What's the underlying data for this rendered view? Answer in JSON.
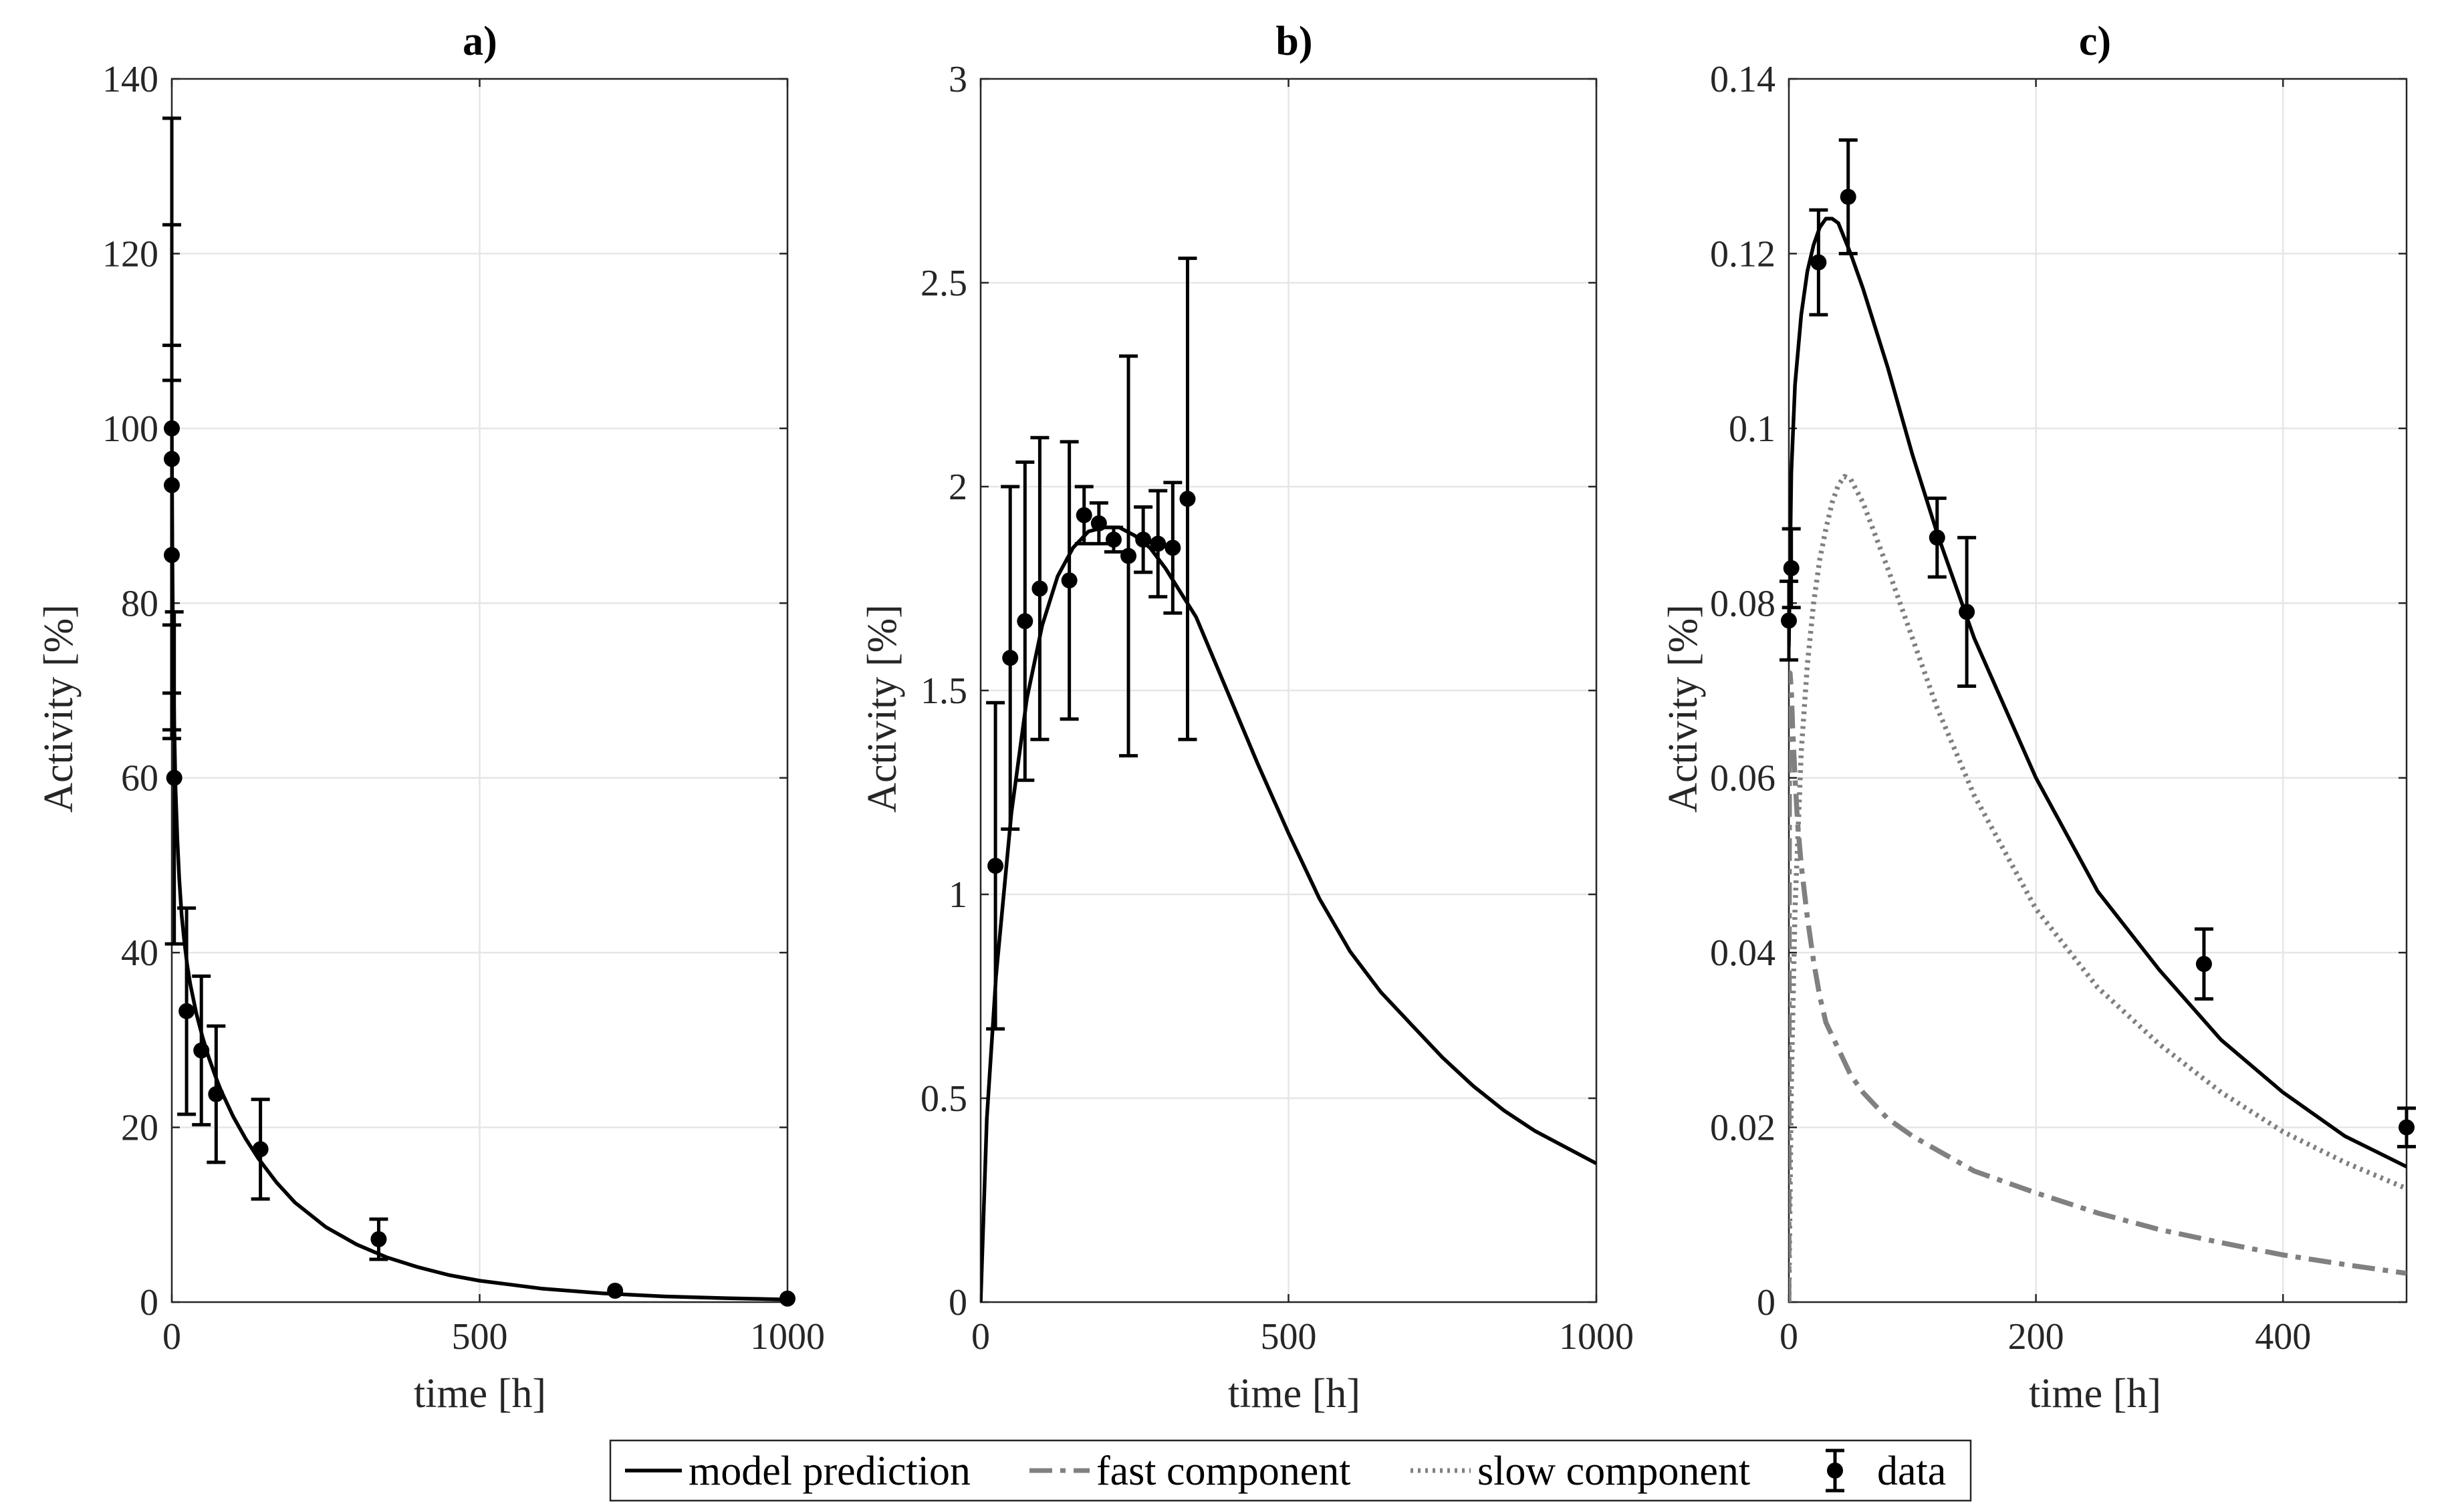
{
  "chart_data": [
    {
      "id": "a",
      "type": "line",
      "title": "a)",
      "xlabel": "time [h]",
      "ylabel": "Activity [%]",
      "xlim": [
        0,
        1000
      ],
      "ylim": [
        0,
        140
      ],
      "xticks": [
        0,
        500,
        1000
      ],
      "yticks": [
        0,
        20,
        40,
        60,
        80,
        100,
        120,
        140
      ],
      "xtick_labels": [
        "0",
        "500",
        "1000"
      ],
      "ytick_labels": [
        "0",
        "20",
        "40",
        "60",
        "80",
        "100",
        "120",
        "140"
      ],
      "grid": true,
      "series": [
        {
          "name": "model prediction",
          "style": "solid",
          "color": "#000000",
          "x": [
            0,
            1,
            2,
            4,
            6,
            9,
            12,
            16,
            20,
            25,
            30,
            40,
            50,
            60,
            70,
            80,
            100,
            120,
            140,
            170,
            200,
            250,
            300,
            350,
            400,
            450,
            500,
            600,
            700,
            800,
            900,
            1000
          ],
          "y": [
            100,
            85,
            76,
            66,
            59,
            53,
            48.5,
            44.3,
            41.5,
            38.6,
            36.4,
            33.0,
            30.3,
            28.0,
            26.0,
            24.2,
            21.2,
            18.7,
            16.5,
            13.7,
            11.4,
            8.6,
            6.6,
            5.1,
            4.0,
            3.1,
            2.45,
            1.55,
            1.0,
            0.65,
            0.45,
            0.3
          ]
        }
      ],
      "data": {
        "name": "data",
        "x": [
          0,
          0,
          0,
          0,
          4,
          24,
          48,
          72,
          144,
          336,
          720,
          1000
        ],
        "y": [
          100,
          96.5,
          93.5,
          85.5,
          60,
          33.3,
          28.8,
          23.8,
          17.5,
          7.2,
          1.3,
          0.4
        ],
        "err": [
          35.5,
          26.8,
          16,
          20,
          19,
          11.8,
          8.5,
          7.8,
          5.7,
          2.3,
          0,
          0
        ]
      }
    },
    {
      "id": "b",
      "type": "line",
      "title": "b)",
      "xlabel": "time [h]",
      "ylabel": "Activity [%]",
      "xlim": [
        0,
        1000
      ],
      "ylim": [
        0,
        3
      ],
      "xticks": [
        0,
        500,
        1000
      ],
      "yticks": [
        0,
        0.5,
        1,
        1.5,
        2,
        2.5,
        3
      ],
      "xtick_labels": [
        "0",
        "500",
        "1000"
      ],
      "ytick_labels": [
        "0",
        "0.5",
        "1",
        "1.5",
        "2",
        "2.5",
        "3"
      ],
      "grid": true,
      "series": [
        {
          "name": "model prediction",
          "style": "solid",
          "color": "#000000",
          "x": [
            0,
            10,
            25,
            50,
            75,
            100,
            125,
            150,
            175,
            200,
            225,
            250,
            275,
            300,
            350,
            400,
            450,
            500,
            550,
            600,
            650,
            700,
            750,
            800,
            850,
            900,
            950,
            1000
          ],
          "y": [
            0,
            0.45,
            0.8,
            1.2,
            1.48,
            1.66,
            1.78,
            1.85,
            1.89,
            1.9,
            1.9,
            1.88,
            1.85,
            1.8,
            1.68,
            1.5,
            1.32,
            1.15,
            0.99,
            0.86,
            0.76,
            0.68,
            0.6,
            0.53,
            0.47,
            0.42,
            0.38,
            0.34
          ]
        }
      ],
      "data": {
        "name": "data",
        "x": [
          24,
          48,
          72,
          96,
          144,
          168,
          192,
          216,
          240,
          264,
          288,
          312,
          336
        ],
        "y": [
          1.07,
          1.58,
          1.67,
          1.75,
          1.77,
          1.93,
          1.91,
          1.87,
          1.83,
          1.87,
          1.86,
          1.85,
          1.97
        ],
        "err": [
          0.4,
          0.42,
          0.39,
          0.37,
          0.34,
          0.07,
          0.05,
          0.03,
          0.49,
          0.08,
          0.13,
          0.16,
          0.59
        ]
      }
    },
    {
      "id": "c",
      "type": "line",
      "title": "c)",
      "xlabel": "time [h]",
      "ylabel": "Activity [%]",
      "xlim": [
        0,
        500
      ],
      "ylim": [
        0,
        0.14
      ],
      "xticks": [
        0,
        200,
        400
      ],
      "yticks": [
        0,
        0.02,
        0.04,
        0.06,
        0.08,
        0.1,
        0.12,
        0.14
      ],
      "xtick_labels": [
        "0",
        "200",
        "400"
      ],
      "ytick_labels": [
        "0",
        "0.02",
        "0.04",
        "0.06",
        "0.08",
        "0.1",
        "0.12",
        "0.14"
      ],
      "grid": true,
      "series": [
        {
          "name": "model prediction",
          "style": "solid",
          "color": "#000000",
          "x": [
            0,
            2,
            5,
            10,
            15,
            20,
            25,
            30,
            35,
            40,
            50,
            60,
            80,
            100,
            120,
            150,
            200,
            250,
            300,
            350,
            400,
            450,
            500
          ],
          "y": [
            0.075,
            0.095,
            0.105,
            0.113,
            0.118,
            0.121,
            0.123,
            0.124,
            0.124,
            0.1235,
            0.12,
            0.116,
            0.107,
            0.097,
            0.088,
            0.076,
            0.06,
            0.047,
            0.038,
            0.03,
            0.024,
            0.019,
            0.0155
          ]
        },
        {
          "name": "fast component",
          "style": "dashed",
          "color": "#808080",
          "x": [
            0,
            0.5,
            1,
            2,
            3,
            5,
            7,
            10,
            15,
            20,
            25,
            30,
            40,
            50,
            60,
            80,
            100,
            150,
            200,
            250,
            300,
            350,
            400,
            450,
            500
          ],
          "y": [
            0,
            0.07,
            0.072,
            0.07,
            0.066,
            0.06,
            0.055,
            0.05,
            0.044,
            0.039,
            0.035,
            0.032,
            0.029,
            0.026,
            0.024,
            0.021,
            0.019,
            0.015,
            0.0125,
            0.0102,
            0.0083,
            0.0068,
            0.0054,
            0.0043,
            0.0033
          ]
        },
        {
          "name": "slow component",
          "style": "dotted",
          "color": "#808080",
          "x": [
            0,
            2,
            5,
            10,
            15,
            20,
            25,
            30,
            35,
            40,
            45,
            50,
            60,
            80,
            100,
            120,
            150,
            200,
            250,
            300,
            350,
            400,
            450,
            500
          ],
          "y": [
            0,
            0.025,
            0.045,
            0.063,
            0.073,
            0.08,
            0.085,
            0.0885,
            0.0915,
            0.0935,
            0.0945,
            0.0942,
            0.0915,
            0.084,
            0.076,
            0.068,
            0.058,
            0.045,
            0.036,
            0.0295,
            0.024,
            0.0195,
            0.016,
            0.013
          ]
        }
      ],
      "data": {
        "name": "data",
        "x": [
          0,
          2,
          24,
          48,
          120,
          144,
          336,
          500
        ],
        "y": [
          0.078,
          0.084,
          0.119,
          0.1265,
          0.0875,
          0.079,
          0.0387,
          0.02
        ],
        "err": [
          0.0045,
          0.0045,
          0.006,
          0.0065,
          0.0045,
          0.0085,
          0.004,
          0.0022
        ]
      }
    }
  ],
  "legend": {
    "placement": "bottom-center",
    "entries": [
      {
        "label": "model prediction",
        "style": "solid"
      },
      {
        "label": "fast component",
        "style": "dashed"
      },
      {
        "label": "slow component",
        "style": "dotted"
      },
      {
        "label": "data",
        "style": "errorbar"
      }
    ]
  },
  "colors": {
    "model": "#000000",
    "component": "#808080",
    "grid": "#e6e6e6",
    "axes": "#262626"
  }
}
